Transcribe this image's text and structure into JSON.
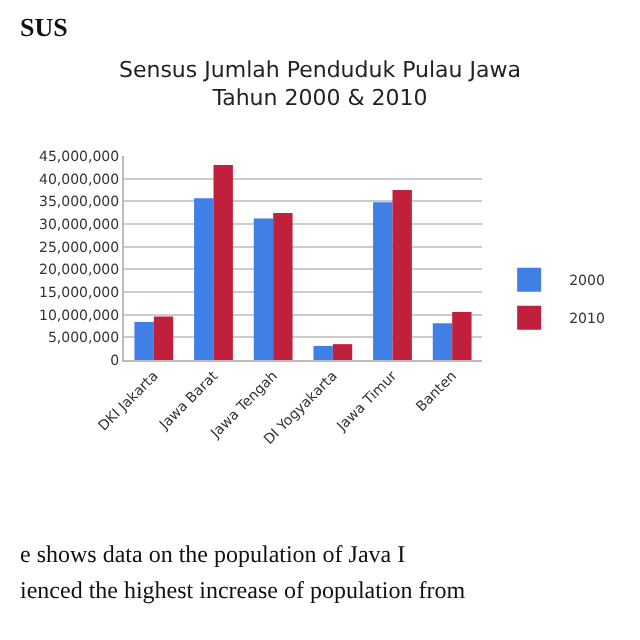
{
  "chart_data": {
    "type": "bar",
    "title": "Sensus Jumlah Penduduk Pulau Jawa\nTahun 2000 & 2010",
    "categories": [
      "DKI Jakarta",
      "Jawa Barat",
      "Jawa Tengah",
      "DI Yogyakarta",
      "Jawa Timur",
      "Banten"
    ],
    "series": [
      {
        "name": "2000",
        "color": "#3f7fe6",
        "values": [
          8400000,
          35700000,
          31200000,
          3100000,
          34800000,
          8100000
        ]
      },
      {
        "name": "2010",
        "color": "#c0203c",
        "values": [
          9600000,
          43000000,
          32400000,
          3500000,
          37500000,
          10600000
        ]
      }
    ],
    "ylim": [
      0,
      45000000
    ],
    "yticks": [
      {
        "value": 0,
        "label": "0"
      },
      {
        "value": 5000000,
        "label": "5,000,000"
      },
      {
        "value": 10000000,
        "label": "10,000,000"
      },
      {
        "value": 15000000,
        "label": "15,000,000"
      },
      {
        "value": 20000000,
        "label": "20,000,000"
      },
      {
        "value": 25000000,
        "label": "25,000,000"
      },
      {
        "value": 30000000,
        "label": "30,000,000"
      },
      {
        "value": 35000000,
        "label": "35,000,000"
      },
      {
        "value": 40000000,
        "label": "40,000,000"
      },
      {
        "value": 45000000,
        "label": "45,000,000"
      }
    ],
    "grid": "y",
    "legend": "right",
    "annotations": [
      "SUS",
      "e shows data on the population of Java I",
      "ienced the highest increase of population from"
    ]
  }
}
